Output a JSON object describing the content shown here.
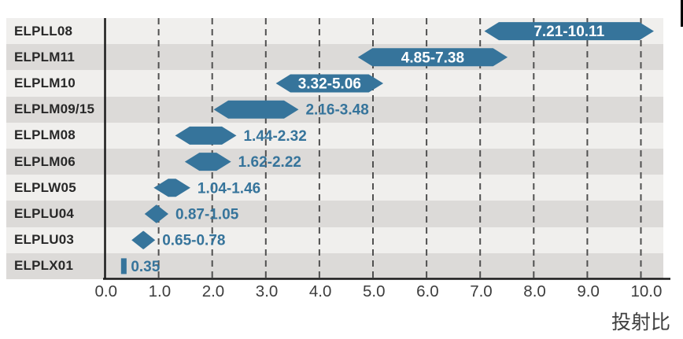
{
  "chart_data": {
    "type": "range-bar",
    "title": "",
    "xlabel": "投射比",
    "xlim": [
      0,
      10.4
    ],
    "grid": "vertical-dashed",
    "legend": "none",
    "x_tick_labels": [
      "0.0",
      "1.0",
      "2.0",
      "3.0",
      "4.0",
      "5.0",
      "6.0",
      "7.0",
      "8.0",
      "9.0",
      "10.0"
    ],
    "rows": [
      {
        "label": "ELPLL08",
        "min": 7.21,
        "max": 10.11,
        "range_label": "7.21-10.11",
        "label_inside": true,
        "shape": "range"
      },
      {
        "label": "ELPLM11",
        "min": 4.85,
        "max": 7.38,
        "range_label": "4.85-7.38",
        "label_inside": true,
        "shape": "range"
      },
      {
        "label": "ELPLM10",
        "min": 3.32,
        "max": 5.06,
        "range_label": "3.32-5.06",
        "label_inside": true,
        "shape": "range"
      },
      {
        "label": "ELPLM09/15",
        "min": 2.16,
        "max": 3.48,
        "range_label": "2.16-3.48",
        "label_inside": false,
        "shape": "range"
      },
      {
        "label": "ELPLM08",
        "min": 1.44,
        "max": 2.32,
        "range_label": "1.44-2.32",
        "label_inside": false,
        "shape": "range"
      },
      {
        "label": "ELPLM06",
        "min": 1.62,
        "max": 2.22,
        "range_label": "1.62-2.22",
        "label_inside": false,
        "shape": "range"
      },
      {
        "label": "ELPLW05",
        "min": 1.04,
        "max": 1.46,
        "range_label": "1.04-1.46",
        "label_inside": false,
        "shape": "range"
      },
      {
        "label": "ELPLU04",
        "min": 0.87,
        "max": 1.05,
        "range_label": "0.87-1.05",
        "label_inside": false,
        "shape": "range"
      },
      {
        "label": "ELPLU03",
        "min": 0.65,
        "max": 0.78,
        "range_label": "0.65-0.78",
        "label_inside": false,
        "shape": "range"
      },
      {
        "label": "ELPLX01",
        "min": 0.35,
        "max": 0.35,
        "range_label": "0.35",
        "label_inside": false,
        "shape": "tick"
      }
    ],
    "colors": {
      "bar": "#36749B",
      "bar_label_inside": "#ffffff",
      "bar_label_outside": "#36749B",
      "band_light": "#f0efed",
      "band_dark": "#dcdad8",
      "gridline": "#505050",
      "axis_line": "#1a1a1a",
      "tick_text": "#3d3d3d",
      "row_label_text": "#282828",
      "axis_title_text": "#3f3f3f"
    }
  }
}
